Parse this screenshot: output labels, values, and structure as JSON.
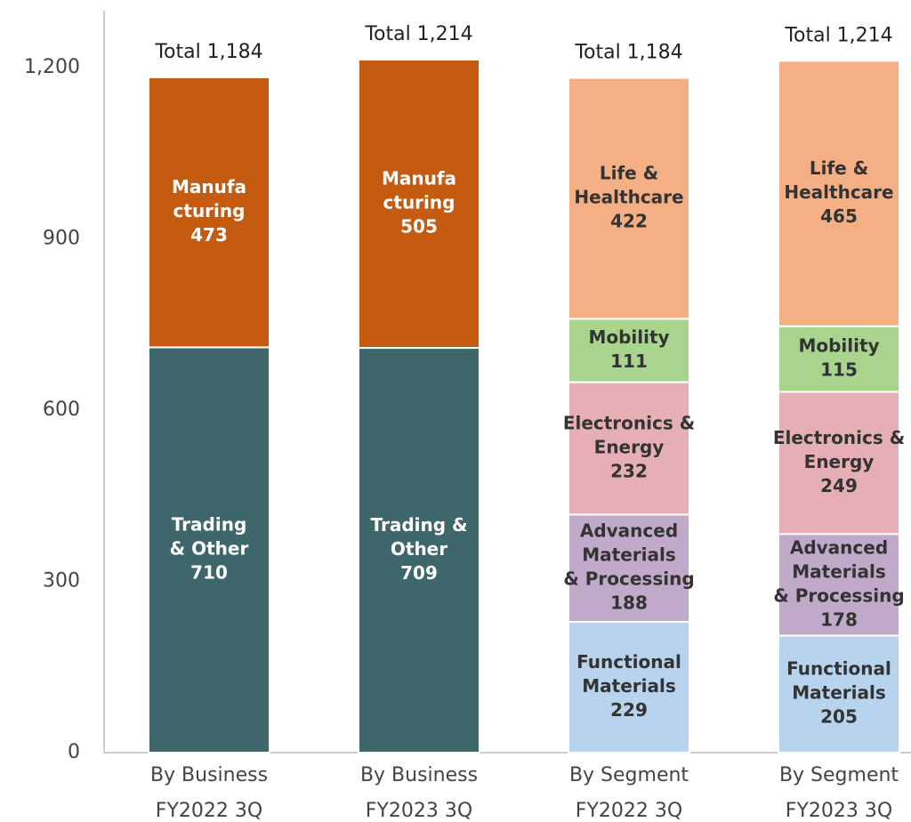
{
  "chart_data": {
    "type": "stacked-bar",
    "categories": [
      [
        "By Business",
        "FY2022 3Q"
      ],
      [
        "By Business",
        "FY2023 3Q"
      ],
      [
        "By Segment",
        "FY2022 3Q"
      ],
      [
        "By Segment",
        "FY2023 3Q"
      ]
    ],
    "totals": [
      1184,
      1214,
      1184,
      1214
    ],
    "total_labels": [
      "Total 1,184",
      "Total 1,214",
      "Total 1,184",
      "Total 1,214"
    ],
    "series": [
      {
        "color": "#3e676b",
        "label_color": "#ffffff",
        "labels": [
          [
            "Trading",
            "& Other"
          ],
          [
            "Trading &",
            "Other"
          ],
          null,
          null
        ],
        "values": [
          710,
          709,
          null,
          null
        ]
      },
      {
        "color": "#c55a11",
        "label_color": "#ffffff",
        "labels": [
          [
            "Manufa",
            "cturing"
          ],
          [
            "Manufa",
            "cturing"
          ],
          null,
          null
        ],
        "values": [
          473,
          505,
          null,
          null
        ]
      },
      {
        "color": "#b8d3ee",
        "label_color": "#333333",
        "labels": [
          null,
          null,
          [
            "Functional",
            "Materials"
          ],
          [
            "Functional",
            "Materials"
          ]
        ],
        "values": [
          null,
          null,
          229,
          205
        ]
      },
      {
        "color": "#c1a9c9",
        "label_color": "#333333",
        "labels": [
          null,
          null,
          [
            "Advanced",
            "Materials",
            "& Processing"
          ],
          [
            "Advanced",
            "Materials",
            "& Processing"
          ]
        ],
        "values": [
          null,
          null,
          188,
          178
        ]
      },
      {
        "color": "#e6afb6",
        "label_color": "#333333",
        "labels": [
          null,
          null,
          [
            "Electronics &",
            "Energy"
          ],
          [
            "Electronics &",
            "Energy"
          ]
        ],
        "values": [
          null,
          null,
          232,
          249
        ]
      },
      {
        "color": "#a9d48e",
        "label_color": "#333333",
        "labels": [
          null,
          null,
          [
            "Mobility"
          ],
          [
            "Mobility"
          ]
        ],
        "values": [
          null,
          null,
          111,
          115
        ]
      },
      {
        "color": "#f4b084",
        "label_color": "#333333",
        "labels": [
          null,
          null,
          [
            "Life &",
            "Healthcare"
          ],
          [
            "Life &",
            "Healthcare"
          ]
        ],
        "values": [
          null,
          null,
          422,
          465
        ]
      }
    ],
    "ylim": [
      0,
      1200
    ],
    "yticks": [
      0,
      300,
      600,
      900,
      {
        "value": 1200,
        "label": "1,200"
      }
    ]
  }
}
